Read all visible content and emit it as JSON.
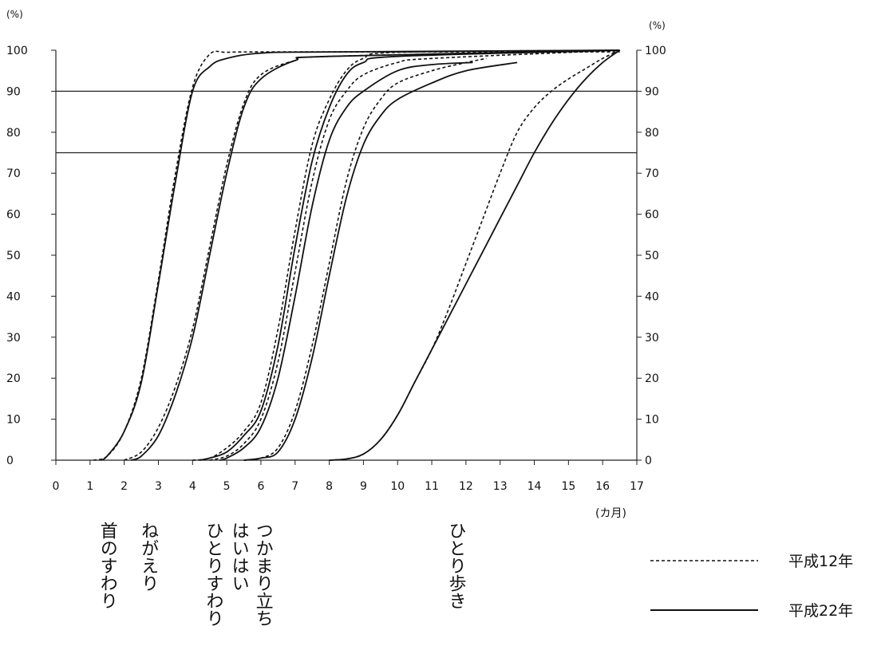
{
  "chart_data": {
    "type": "line",
    "ylabel_left": "(%)",
    "ylabel_right": "(%)",
    "xlabel": "(カ月)",
    "xlim": [
      0,
      17
    ],
    "ylim": [
      0,
      100
    ],
    "x_ticks": [
      "0",
      "1",
      "2",
      "3",
      "4",
      "5",
      "6",
      "7",
      "8",
      "9",
      "10",
      "11",
      "12",
      "13",
      "14",
      "15",
      "16",
      "17"
    ],
    "y_ticks": [
      "0",
      "10",
      "20",
      "30",
      "40",
      "50",
      "60",
      "70",
      "80",
      "90",
      "100"
    ],
    "reference_lines": [
      75,
      90
    ],
    "grid": false,
    "milestones": [
      {
        "label": "首のすわり",
        "x": 1.5
      },
      {
        "label": "ねがえり",
        "x": 2.7
      },
      {
        "label": "ひとりすわり",
        "x": 4.6
      },
      {
        "label": "はいはい",
        "x": 5.35
      },
      {
        "label": "つかまり立ち",
        "x": 6.05
      },
      {
        "label": "ひとり歩き",
        "x": 11.7
      }
    ],
    "series": [
      {
        "milestone": "首のすわり",
        "legend": "平成12年",
        "style": "dashed",
        "x": [
          1.1,
          1.5,
          2.0,
          2.5,
          3.0,
          3.5,
          4.0,
          4.5,
          5.0,
          6.0,
          8.0,
          16.5
        ],
        "y": [
          0,
          1,
          7,
          20,
          44,
          70,
          91,
          99,
          99.5,
          99.6,
          99.6,
          99.6
        ]
      },
      {
        "milestone": "首のすわり",
        "legend": "平成22年",
        "style": "solid",
        "x": [
          1.3,
          1.5,
          2.0,
          2.5,
          3.0,
          3.5,
          4.0,
          4.5,
          5.0,
          6.0,
          8.0,
          16.5
        ],
        "y": [
          0,
          1,
          7,
          19,
          43,
          68,
          90,
          96,
          98,
          99.3,
          99.6,
          100
        ]
      },
      {
        "milestone": "ねがえり",
        "legend": "平成12年",
        "style": "dashed",
        "x": [
          2.0,
          2.5,
          3.0,
          3.5,
          4.0,
          4.5,
          5.0,
          5.5,
          6.0,
          7.0,
          8.0,
          16.5
        ],
        "y": [
          0,
          2,
          8,
          18,
          32,
          52,
          72,
          87,
          94,
          97.5,
          98.5,
          100
        ]
      },
      {
        "milestone": "ねがえり",
        "legend": "平成22年",
        "style": "solid",
        "x": [
          2.2,
          2.5,
          3.0,
          3.5,
          4.0,
          4.5,
          5.0,
          5.5,
          6.0,
          7.0,
          8.0,
          16.5
        ],
        "y": [
          0,
          1,
          6,
          16,
          30,
          50,
          70,
          86,
          93,
          97.5,
          98.5,
          100
        ]
      },
      {
        "milestone": "ひとりすわり",
        "legend": "平成12年",
        "style": "dashed",
        "x": [
          4.0,
          4.5,
          5.0,
          5.5,
          6.0,
          6.5,
          7.0,
          7.5,
          8.0,
          8.5,
          9.0,
          10.0,
          16.5
        ],
        "y": [
          0,
          0.5,
          3,
          7,
          14,
          32,
          56,
          77,
          88,
          95,
          98,
          99.5,
          100
        ]
      },
      {
        "milestone": "ひとりすわり",
        "legend": "平成22年",
        "style": "solid",
        "x": [
          4.2,
          4.5,
          5.0,
          5.5,
          6.0,
          6.5,
          7.0,
          7.5,
          8.0,
          8.5,
          9.0,
          10.0,
          16.5
        ],
        "y": [
          0,
          0.5,
          2,
          6,
          12,
          28,
          52,
          73,
          86,
          94,
          97,
          98.5,
          100
        ]
      },
      {
        "milestone": "はいはい",
        "legend": "平成12年",
        "style": "dashed",
        "x": [
          4.5,
          5.0,
          5.5,
          6.0,
          6.5,
          7.0,
          7.5,
          8.0,
          8.5,
          9.0,
          10.0,
          11.0,
          16.5
        ],
        "y": [
          0,
          1,
          4,
          10,
          24,
          46,
          68,
          83,
          90,
          94,
          97,
          98,
          100
        ]
      },
      {
        "milestone": "はいはい",
        "legend": "平成22年",
        "style": "solid",
        "x": [
          4.8,
          5.0,
          5.5,
          6.0,
          6.5,
          7.0,
          7.5,
          8.0,
          8.5,
          9.0,
          10.0,
          11.0,
          12.2
        ],
        "y": [
          0,
          0.5,
          3,
          8,
          20,
          40,
          62,
          78,
          86,
          90,
          95,
          96.5,
          97
        ]
      },
      {
        "milestone": "つかまり立ち",
        "legend": "平成12年",
        "style": "dashed",
        "x": [
          5.5,
          6.0,
          6.5,
          7.0,
          7.5,
          8.0,
          8.5,
          9.0,
          9.5,
          10.0,
          11.0,
          12.0,
          12.6
        ],
        "y": [
          0,
          0.5,
          3,
          12,
          28,
          48,
          68,
          81,
          88,
          92,
          95,
          97,
          98
        ]
      },
      {
        "milestone": "つかまり立ち",
        "legend": "平成22年",
        "style": "solid",
        "x": [
          5.5,
          6.0,
          6.5,
          7.0,
          7.5,
          8.0,
          8.5,
          9.0,
          9.5,
          10.0,
          11.0,
          12.0,
          13.5
        ],
        "y": [
          0,
          0.5,
          2,
          10,
          25,
          45,
          64,
          77,
          84,
          88,
          92,
          95,
          97
        ]
      },
      {
        "milestone": "ひとり歩き",
        "legend": "平成12年",
        "style": "dashed",
        "x": [
          8.0,
          8.5,
          9.0,
          9.5,
          10.0,
          10.5,
          11.0,
          11.5,
          12.0,
          12.5,
          13.0,
          13.5,
          14.0,
          14.5,
          15.0,
          15.5,
          16.0,
          16.5
        ],
        "y": [
          0,
          0.3,
          1.5,
          5,
          11,
          19,
          27,
          37,
          48,
          59,
          70,
          80,
          86,
          90,
          93,
          95.5,
          98,
          100
        ]
      },
      {
        "milestone": "ひとり歩き",
        "legend": "平成22年",
        "style": "solid",
        "x": [
          8.0,
          8.5,
          9.0,
          9.5,
          10.0,
          10.5,
          11.0,
          11.5,
          12.0,
          12.5,
          13.0,
          13.5,
          14.0,
          14.5,
          15.0,
          15.5,
          16.0,
          16.5
        ],
        "y": [
          0,
          0.3,
          1.5,
          5,
          11,
          19,
          27,
          35,
          43,
          51,
          59,
          67,
          75,
          82,
          88,
          93,
          97,
          100
        ]
      }
    ],
    "legend": [
      {
        "label": "平成12年",
        "style": "dashed"
      },
      {
        "label": "平成22年",
        "style": "solid"
      }
    ],
    "legend_position": "bottom-right"
  }
}
